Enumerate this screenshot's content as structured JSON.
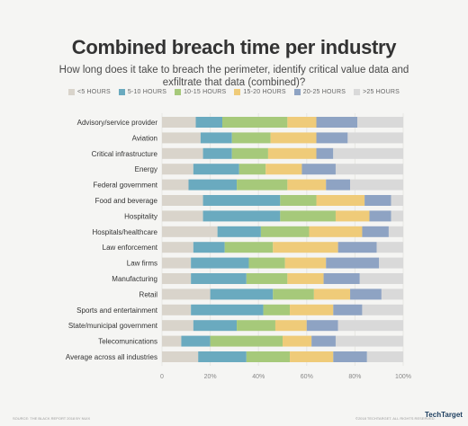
{
  "title": "Combined breach time per industry",
  "subtitle": "How long does it take to breach the perimeter, identify critical value data and exfiltrate that data (combined)?",
  "source": "SOURCE: THE BLACK REPORT 2018 BY NUIX",
  "copyright": "©2018 TECHTARGET. ALL RIGHTS RESERVED.",
  "logo": "TechTarget",
  "chart_data": {
    "type": "bar",
    "orientation": "horizontal",
    "stacked": true,
    "title": "Combined breach time per industry",
    "subtitle": "How long does it take to breach the perimeter, identify critical value data and exfiltrate that data (combined)?",
    "xlim": [
      0,
      100
    ],
    "x_ticks": [
      "0",
      "20%",
      "40%",
      "60%",
      "80%",
      "100%"
    ],
    "legend_position": "top",
    "grid": true,
    "categories": [
      "Advisory/service provider",
      "Aviation",
      "Critical infrastructure",
      "Energy",
      "Federal government",
      "Food and beverage",
      "Hospitality",
      "Hospitals/healthcare",
      "Law enforcement",
      "Law firms",
      "Manufacturing",
      "Retail",
      "Sports and entertainment",
      "State/municipal government",
      "Telecomunications",
      "Average across all industries"
    ],
    "series": [
      {
        "name": "<5 HOURS",
        "color": "#d9d4cb",
        "values": [
          14,
          16,
          17,
          13,
          11,
          17,
          17,
          23,
          13,
          12,
          12,
          20,
          12,
          13,
          8,
          15
        ]
      },
      {
        "name": "5-10 HOURS",
        "color": "#6aaabf",
        "values": [
          11,
          13,
          12,
          19,
          20,
          32,
          32,
          18,
          13,
          24,
          23,
          26,
          30,
          18,
          12,
          20
        ]
      },
      {
        "name": "10-15 HOURS",
        "color": "#a6c97a",
        "values": [
          27,
          16,
          15,
          11,
          21,
          15,
          23,
          20,
          20,
          15,
          17,
          17,
          11,
          16,
          30,
          18
        ]
      },
      {
        "name": "15-20 HOURS",
        "color": "#efcb79",
        "values": [
          12,
          19,
          20,
          15,
          16,
          20,
          14,
          22,
          27,
          17,
          15,
          15,
          18,
          13,
          12,
          18
        ]
      },
      {
        "name": "20-25 HOURS",
        "color": "#8ea3c3",
        "values": [
          17,
          13,
          7,
          14,
          10,
          11,
          9,
          11,
          16,
          22,
          15,
          13,
          12,
          13,
          10,
          14
        ]
      },
      {
        "name": ">25 HOURS",
        "color": "#d9d9d9",
        "values": [
          19,
          23,
          29,
          28,
          22,
          5,
          5,
          6,
          11,
          10,
          18,
          9,
          17,
          27,
          28,
          15
        ]
      }
    ]
  }
}
